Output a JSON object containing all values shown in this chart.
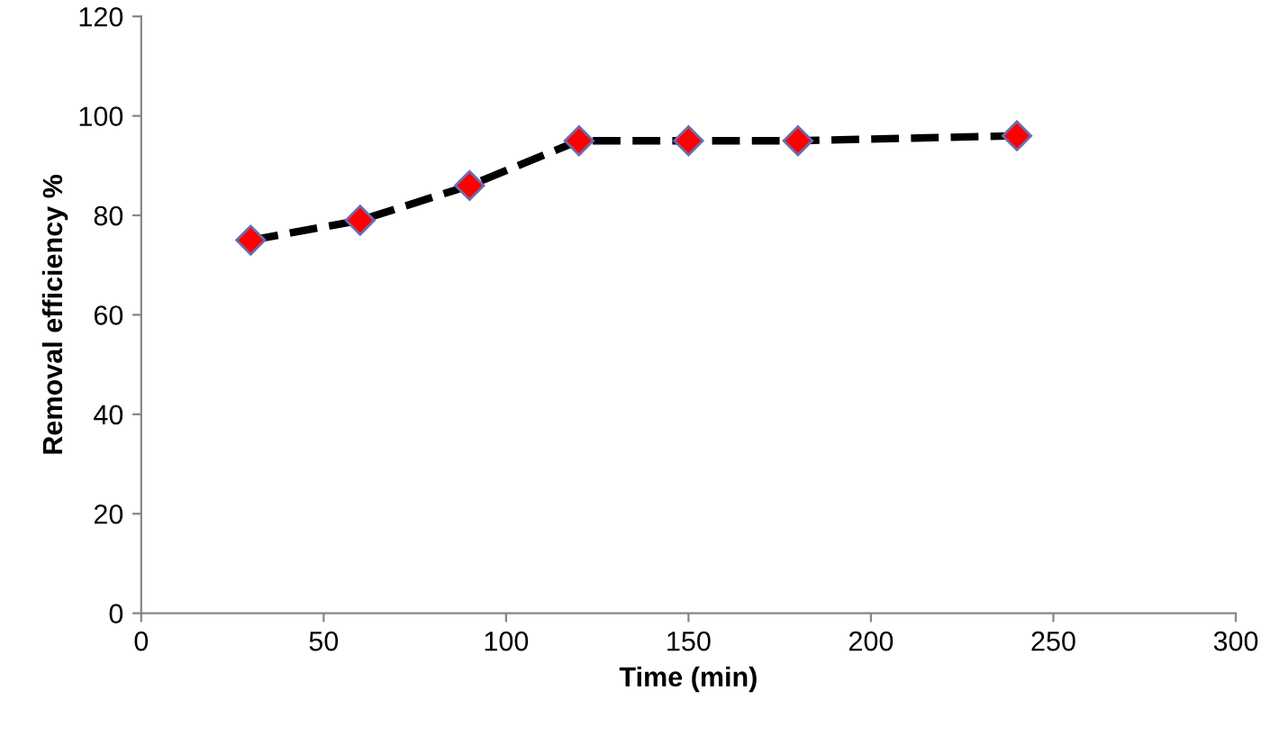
{
  "chart_data": {
    "type": "line",
    "xlabel": "Time (min)",
    "ylabel": "Removal efficiency %",
    "x": [
      30,
      60,
      90,
      120,
      150,
      180,
      240
    ],
    "series": [
      {
        "color": "#ff0000",
        "values": [
          75,
          79,
          86,
          95,
          95,
          95,
          96
        ]
      }
    ],
    "xlim": [
      0,
      300
    ],
    "ylim": [
      0,
      120
    ],
    "xticks": [
      0,
      50,
      100,
      150,
      200,
      250,
      300
    ],
    "yticks": [
      0,
      20,
      40,
      60,
      80,
      100,
      120
    ],
    "grid": false,
    "legend": false,
    "marker": "diamond",
    "line_style": "dashed"
  }
}
